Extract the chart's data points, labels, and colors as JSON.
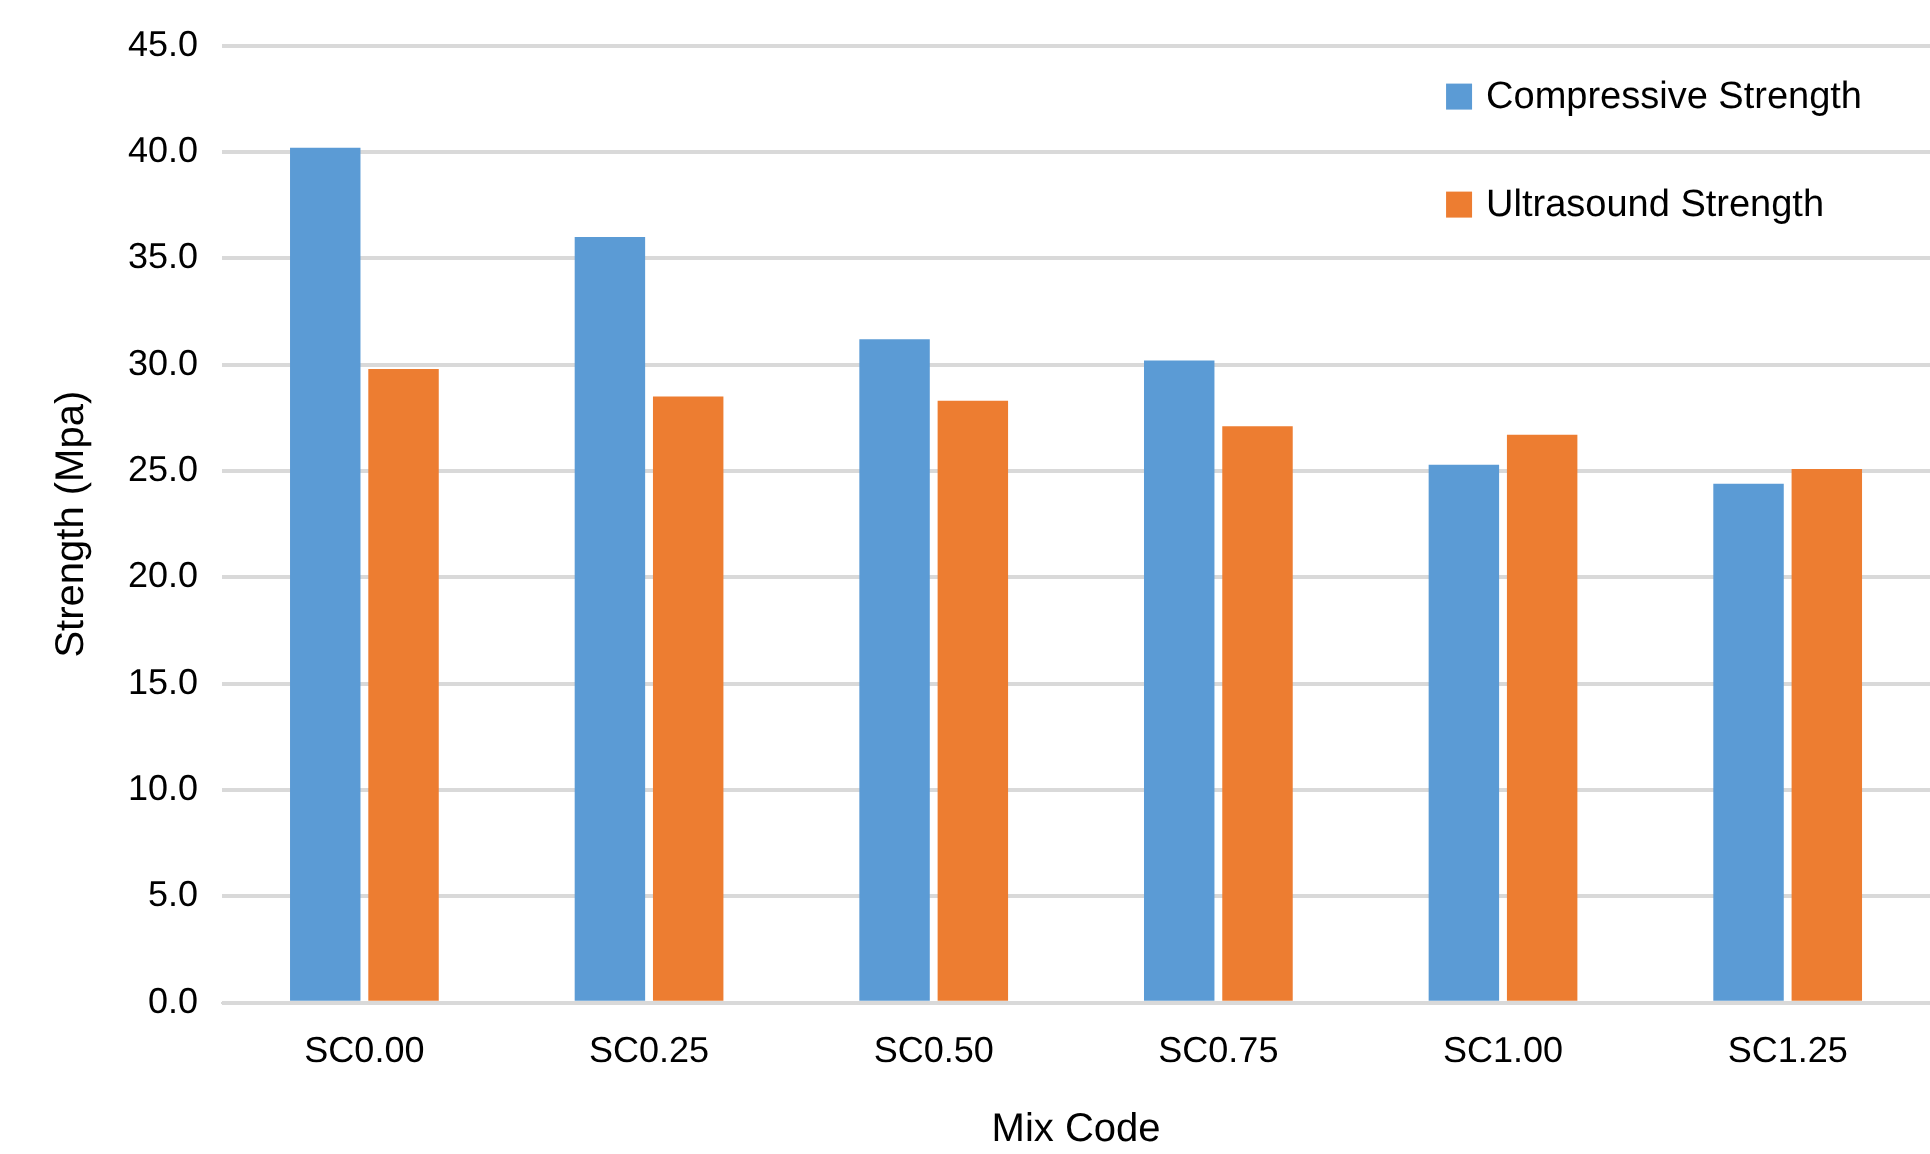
{
  "chart_data": {
    "type": "bar",
    "xlabel": "Mix Code",
    "ylabel": "Strength (Mpa)",
    "categories": [
      "SC0.00",
      "SC0.25",
      "SC0.50",
      "SC0.75",
      "SC1.00",
      "SC1.25"
    ],
    "series": [
      {
        "name": "Compressive Strength",
        "color": "#5b9bd5",
        "values": [
          40.2,
          36.0,
          31.2,
          30.2,
          25.3,
          24.4
        ]
      },
      {
        "name": "Ultrasound Strength",
        "color": "#ed7d31",
        "values": [
          29.8,
          28.5,
          28.3,
          27.1,
          26.7,
          25.1
        ]
      }
    ],
    "ylim": [
      0,
      45
    ],
    "yticks": [
      {
        "value": 0,
        "label": "0.0"
      },
      {
        "value": 5,
        "label": "5.0"
      },
      {
        "value": 10,
        "label": "10.0"
      },
      {
        "value": 15,
        "label": "15.0"
      },
      {
        "value": 20,
        "label": "20.0"
      },
      {
        "value": 25,
        "label": "25.0"
      },
      {
        "value": 30,
        "label": "30.0"
      },
      {
        "value": 35,
        "label": "35.0"
      },
      {
        "value": 40,
        "label": "40.0"
      },
      {
        "value": 45,
        "label": "45.0"
      }
    ],
    "grid": "y",
    "legend": "top right"
  }
}
